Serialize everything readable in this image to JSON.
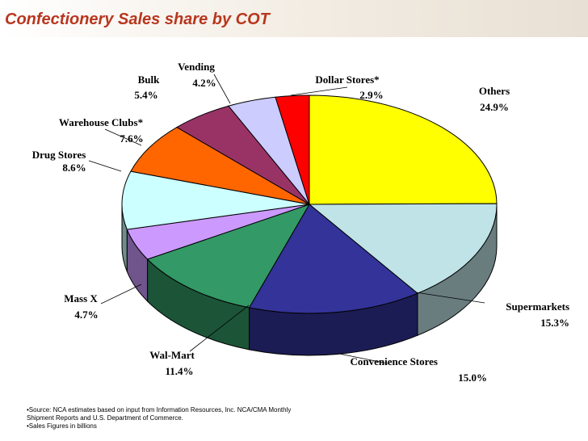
{
  "chart_data": {
    "type": "pie3d",
    "title": "Confectionery Sales share by COT",
    "categories": [
      "Others",
      "Supermarkets",
      "Convenience Stores",
      "Wal-Mart",
      "Mass X",
      "Drug Stores",
      "Warehouse Clubs*",
      "Bulk",
      "Vending",
      "Dollar Stores*"
    ],
    "values": [
      24.9,
      15.3,
      15.0,
      11.4,
      4.7,
      8.6,
      7.6,
      5.4,
      4.2,
      2.9
    ],
    "value_labels": [
      "24.9%",
      "15.3%",
      "15.0%",
      "11.4%",
      "4.7%",
      "8.6%",
      "7.6%",
      "5.4%",
      "4.2%",
      "2.9%"
    ],
    "colors": [
      "#ffff00",
      "#bfe3e6",
      "#333399",
      "#339966",
      "#cc99ff",
      "#ccffff",
      "#ff6600",
      "#993366",
      "#ccccff",
      "#ff0000"
    ],
    "notes": [
      "•Source: NCA estimates based on input from Information Resources, Inc.  NCA/CMA Monthly",
      "Shipment Reports and U.S. Department of Commerce.",
      "•Sales Figures in billions"
    ]
  }
}
